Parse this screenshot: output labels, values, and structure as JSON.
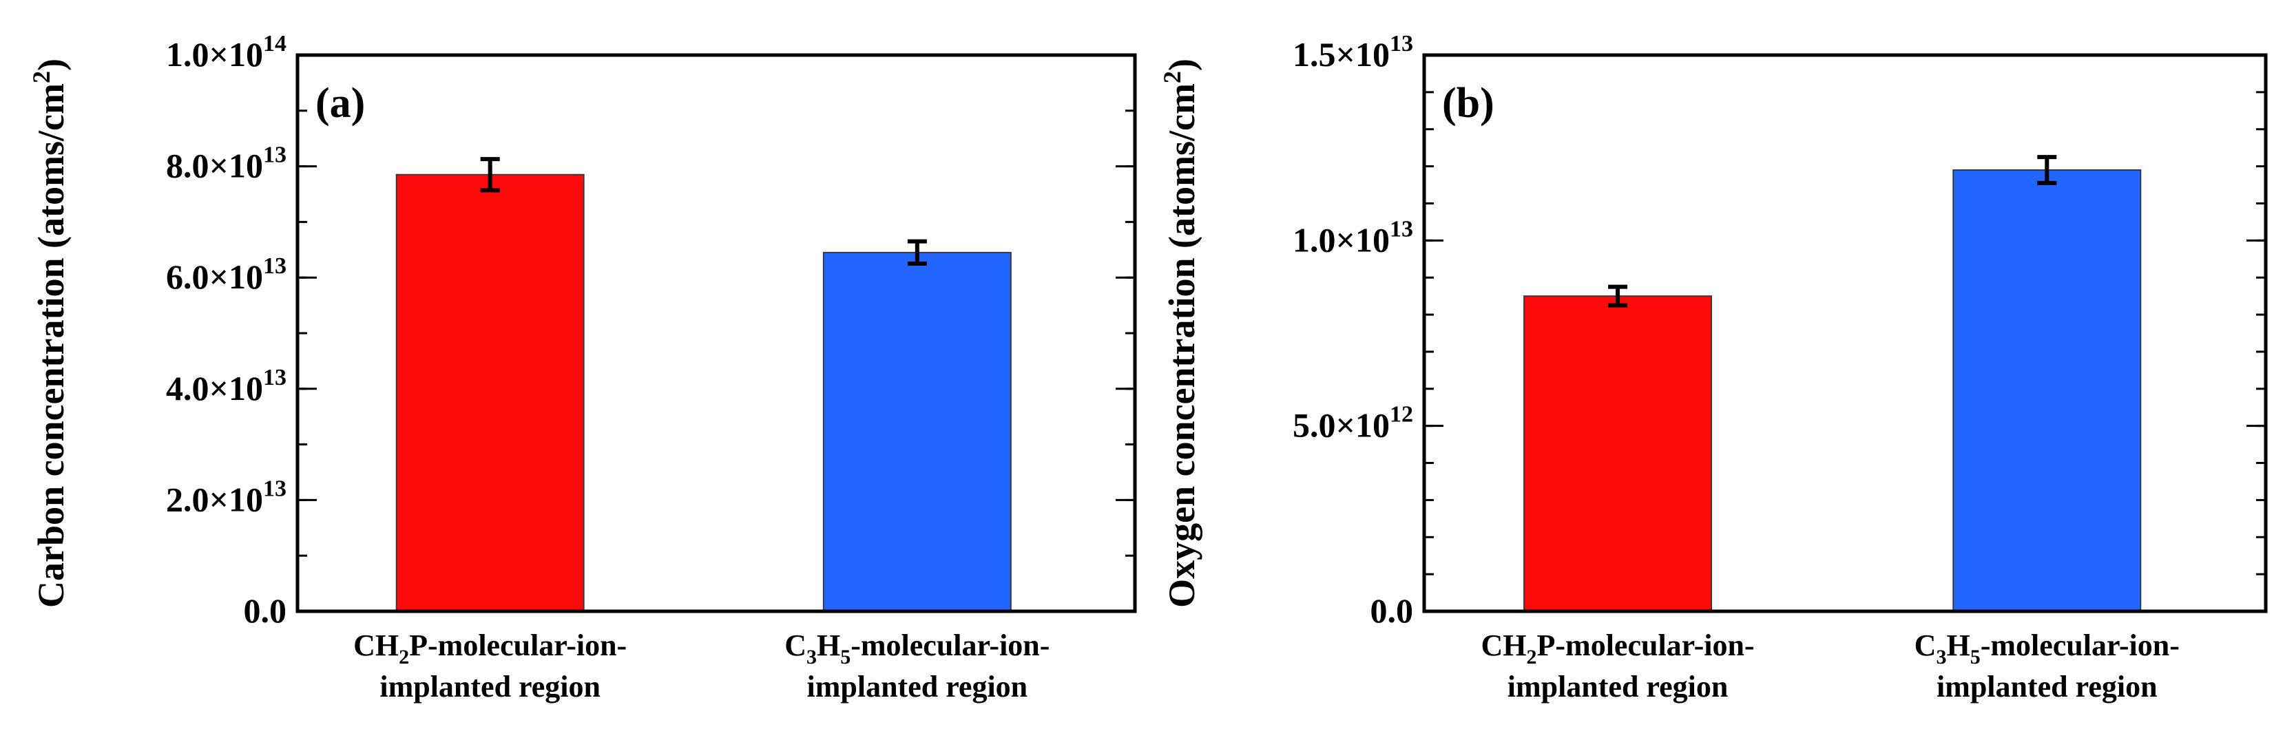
{
  "chart_data": [
    {
      "type": "bar",
      "panel_label": "(a)",
      "ylabel": "Carbon concentration (atoms/cm",
      "ylabel_sup": "2",
      "ylabel_close": ")",
      "ylim": [
        0,
        100000000000000.0
      ],
      "minor_step": 10000000000000.0,
      "yticks": [
        {
          "value": 0,
          "mantissa": "0.0",
          "exp": ""
        },
        {
          "value": 20000000000000.0,
          "mantissa": "2.0",
          "exp": "13"
        },
        {
          "value": 40000000000000.0,
          "mantissa": "4.0",
          "exp": "13"
        },
        {
          "value": 60000000000000.0,
          "mantissa": "6.0",
          "exp": "13"
        },
        {
          "value": 80000000000000.0,
          "mantissa": "8.0",
          "exp": "13"
        },
        {
          "value": 100000000000000.0,
          "mantissa": "1.0",
          "exp": "14"
        }
      ],
      "categories": [
        {
          "line1_pre": "CH",
          "line1_sub": "2",
          "line1_post": "P-molecular-ion-",
          "line2": "implanted region"
        },
        {
          "line1_pre": "C",
          "line1_sub": "3",
          "line1_mid": "H",
          "line1_sub2": "5",
          "line1_post": "-molecular-ion-",
          "line2": "implanted region"
        }
      ],
      "values": [
        78500000000000.0,
        64500000000000.0
      ],
      "errors": [
        2800000000000.0,
        2000000000000.0
      ],
      "colors": [
        "#ff0a0a",
        "#2266ff"
      ]
    },
    {
      "type": "bar",
      "panel_label": "(b)",
      "ylabel": "Oxygen concentration (atoms/cm",
      "ylabel_sup": "2",
      "ylabel_close": ")",
      "ylim": [
        0,
        15000000000000.0
      ],
      "minor_step": 1000000000000.0,
      "yticks": [
        {
          "value": 0,
          "mantissa": "0.0",
          "exp": ""
        },
        {
          "value": 5000000000000.0,
          "mantissa": "5.0",
          "exp": "12"
        },
        {
          "value": 10000000000000.0,
          "mantissa": "1.0",
          "exp": "13"
        },
        {
          "value": 15000000000000.0,
          "mantissa": "1.5",
          "exp": "13"
        }
      ],
      "categories": [
        {
          "line1_pre": "CH",
          "line1_sub": "2",
          "line1_post": "P-molecular-ion-",
          "line2": "implanted region"
        },
        {
          "line1_pre": "C",
          "line1_sub": "3",
          "line1_mid": "H",
          "line1_sub2": "5",
          "line1_post": "-molecular-ion-",
          "line2": "implanted region"
        }
      ],
      "values": [
        8500000000000.0,
        11900000000000.0
      ],
      "errors": [
        250000000000.0,
        350000000000.0
      ],
      "colors": [
        "#ff0a0a",
        "#2266ff"
      ]
    }
  ]
}
